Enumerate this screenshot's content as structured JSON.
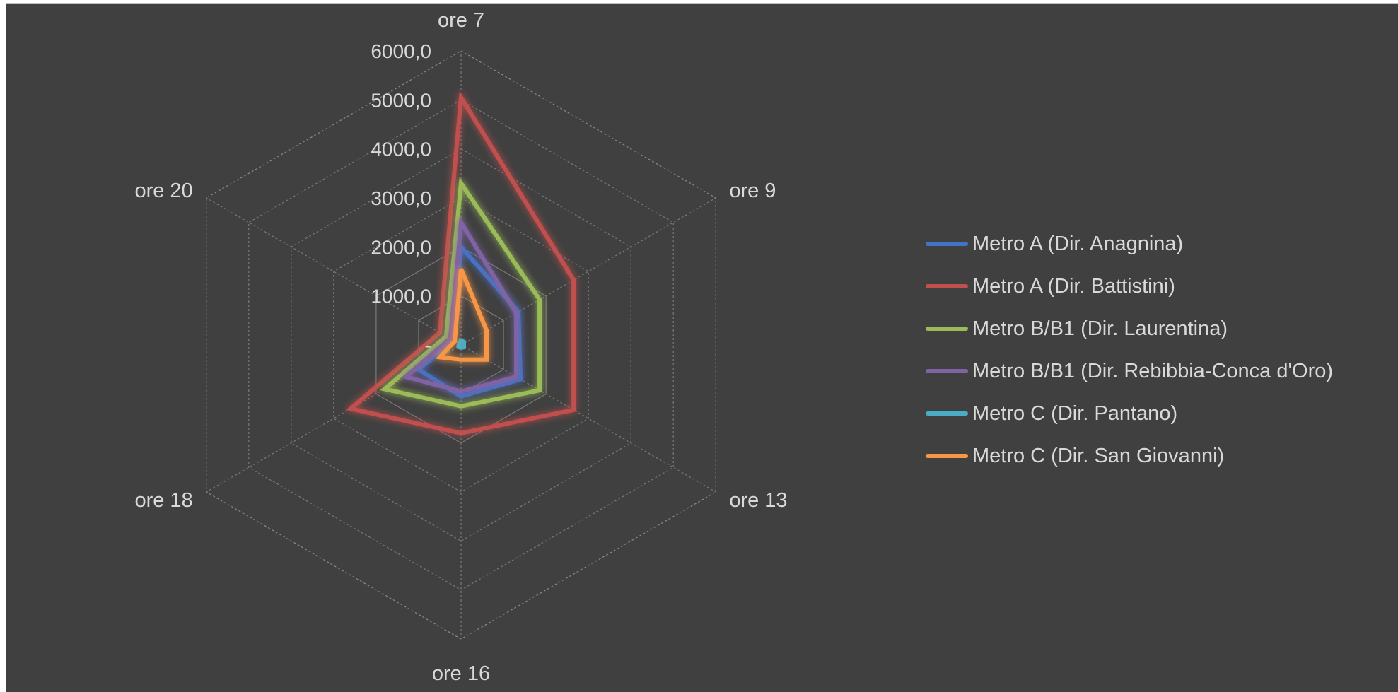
{
  "chart_data": {
    "type": "radar",
    "title": "",
    "categories": [
      "ore 7",
      "ore 9",
      "ore 13",
      "ore 16",
      "ore 18",
      "ore 20"
    ],
    "axis_ticks": [
      "-",
      "1000,0",
      "2000,0",
      "3000,0",
      "4000,0",
      "5000,0",
      "6000,0"
    ],
    "rlim": [
      0,
      6000
    ],
    "grid": true,
    "legend_position": "right",
    "series": [
      {
        "name": "Metro A (Dir. Anagnina)",
        "color": "#4472c4",
        "values": [
          2000,
          1350,
          1400,
          1050,
          1000,
          200
        ]
      },
      {
        "name": "Metro A (Dir. Battistini)",
        "color": "#c0504d",
        "values": [
          5050,
          2650,
          2650,
          1800,
          2600,
          500
        ]
      },
      {
        "name": "Metro B/B1 (Dir. Laurentina)",
        "color": "#9bbb59",
        "values": [
          3300,
          1850,
          1850,
          1250,
          1800,
          350
        ]
      },
      {
        "name": "Metro B/B1 (Dir. Rebibbia-Conca d'Oro)",
        "color": "#8064a2",
        "values": [
          2500,
          1300,
          1300,
          950,
          1300,
          250
        ]
      },
      {
        "name": "Metro C (Dir. Pantano)",
        "color": "#4bacc6",
        "values": [
          100,
          80,
          80,
          60,
          70,
          30
        ]
      },
      {
        "name": "Metro C (Dir. San Giovanni)",
        "color": "#f79646",
        "values": [
          1550,
          600,
          600,
          300,
          500,
          150
        ]
      }
    ]
  }
}
